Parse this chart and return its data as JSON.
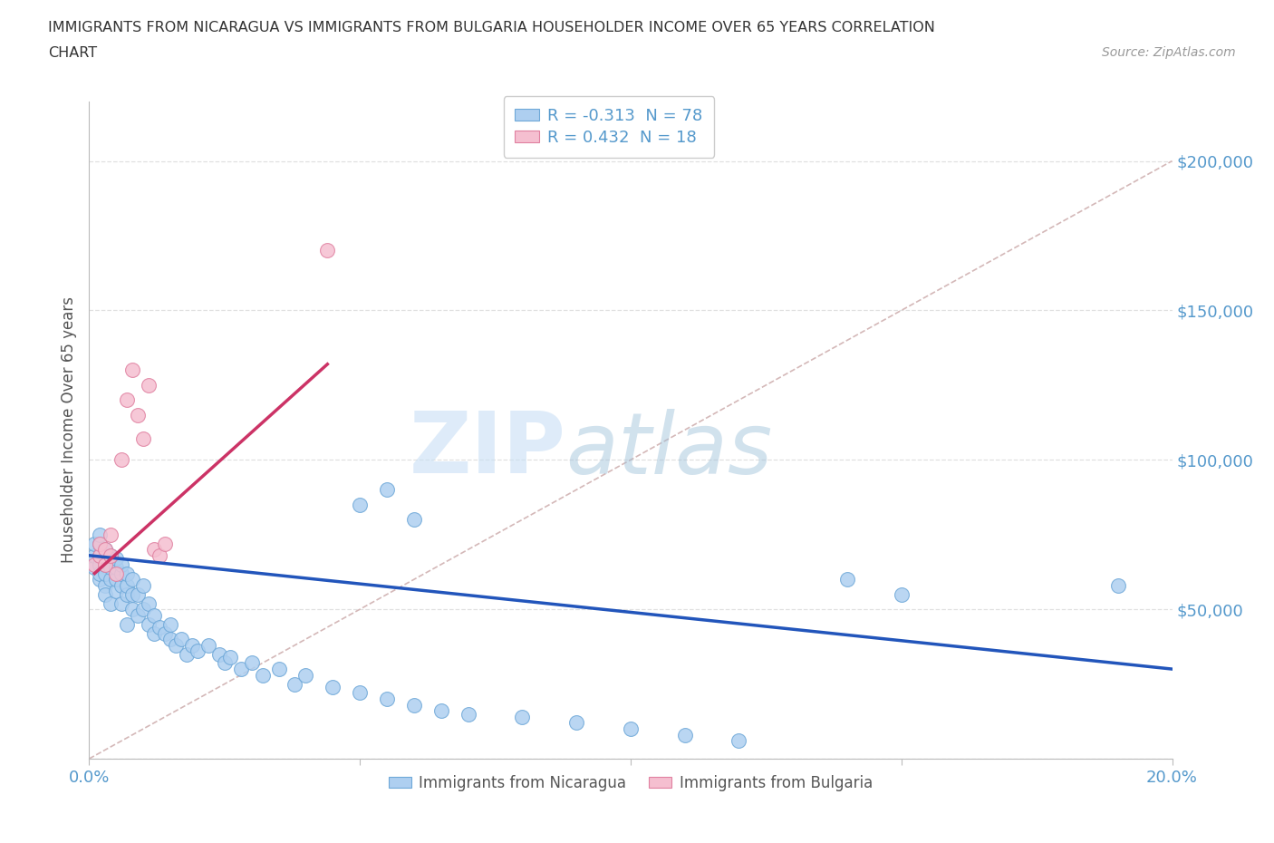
{
  "title_line1": "IMMIGRANTS FROM NICARAGUA VS IMMIGRANTS FROM BULGARIA HOUSEHOLDER INCOME OVER 65 YEARS CORRELATION",
  "title_line2": "CHART",
  "source": "Source: ZipAtlas.com",
  "ylabel": "Householder Income Over 65 years",
  "xlim": [
    0.0,
    0.2
  ],
  "ylim": [
    0,
    220000
  ],
  "xtick_values": [
    0.0,
    0.05,
    0.1,
    0.15,
    0.2
  ],
  "xticklabels": [
    "0.0%",
    "",
    "",
    "",
    "20.0%"
  ],
  "ytick_values": [
    0,
    50000,
    100000,
    150000,
    200000
  ],
  "ytick_labels": [
    "",
    "$50,000",
    "$100,000",
    "$150,000",
    "$200,000"
  ],
  "nicaragua_color": "#aecff0",
  "nicaragua_edge": "#6ea8d8",
  "bulgaria_color": "#f5bfd0",
  "bulgaria_edge": "#e080a0",
  "nicaragua_R": -0.313,
  "nicaragua_N": 78,
  "bulgaria_R": 0.432,
  "bulgaria_N": 18,
  "trend_blue": "#2255bb",
  "trend_pink": "#cc3366",
  "diagonal_color": "#d4b8b8",
  "watermark_zip": "ZIP",
  "watermark_atlas": "atlas",
  "legend_label1": "Immigrants from Nicaragua",
  "legend_label2": "Immigrants from Bulgaria",
  "background_color": "#ffffff",
  "grid_color": "#e0e0e0",
  "tick_color": "#5599cc",
  "title_color": "#333333",
  "source_color": "#999999",
  "ylabel_color": "#555555",
  "nicaragua_x": [
    0.001,
    0.001,
    0.001,
    0.002,
    0.002,
    0.002,
    0.002,
    0.002,
    0.002,
    0.003,
    0.003,
    0.003,
    0.003,
    0.003,
    0.003,
    0.004,
    0.004,
    0.004,
    0.004,
    0.005,
    0.005,
    0.005,
    0.005,
    0.006,
    0.006,
    0.006,
    0.006,
    0.007,
    0.007,
    0.007,
    0.007,
    0.008,
    0.008,
    0.008,
    0.009,
    0.009,
    0.01,
    0.01,
    0.011,
    0.011,
    0.012,
    0.012,
    0.013,
    0.014,
    0.015,
    0.015,
    0.016,
    0.017,
    0.018,
    0.019,
    0.02,
    0.022,
    0.024,
    0.025,
    0.026,
    0.028,
    0.03,
    0.032,
    0.035,
    0.038,
    0.04,
    0.045,
    0.05,
    0.055,
    0.06,
    0.065,
    0.07,
    0.08,
    0.09,
    0.1,
    0.11,
    0.12,
    0.05,
    0.055,
    0.06,
    0.14,
    0.15,
    0.19
  ],
  "nicaragua_y": [
    64000,
    68000,
    72000,
    60000,
    65000,
    68000,
    72000,
    75000,
    62000,
    58000,
    62000,
    65000,
    68000,
    70000,
    55000,
    60000,
    64000,
    68000,
    52000,
    56000,
    60000,
    64000,
    67000,
    58000,
    62000,
    65000,
    52000,
    55000,
    58000,
    62000,
    45000,
    50000,
    55000,
    60000,
    48000,
    55000,
    50000,
    58000,
    45000,
    52000,
    42000,
    48000,
    44000,
    42000,
    40000,
    45000,
    38000,
    40000,
    35000,
    38000,
    36000,
    38000,
    35000,
    32000,
    34000,
    30000,
    32000,
    28000,
    30000,
    25000,
    28000,
    24000,
    22000,
    20000,
    18000,
    16000,
    15000,
    14000,
    12000,
    10000,
    8000,
    6000,
    85000,
    90000,
    80000,
    60000,
    55000,
    58000
  ],
  "bulgaria_x": [
    0.001,
    0.002,
    0.002,
    0.003,
    0.003,
    0.004,
    0.004,
    0.005,
    0.006,
    0.007,
    0.008,
    0.009,
    0.01,
    0.011,
    0.012,
    0.013,
    0.014,
    0.044
  ],
  "bulgaria_y": [
    65000,
    68000,
    72000,
    65000,
    70000,
    75000,
    68000,
    62000,
    100000,
    120000,
    130000,
    115000,
    107000,
    125000,
    70000,
    68000,
    72000,
    170000
  ],
  "blue_trendline_x": [
    0.0,
    0.2
  ],
  "blue_trendline_y": [
    68000,
    30000
  ],
  "pink_trendline_x": [
    0.001,
    0.044
  ],
  "pink_trendline_y": [
    62000,
    132000
  ]
}
